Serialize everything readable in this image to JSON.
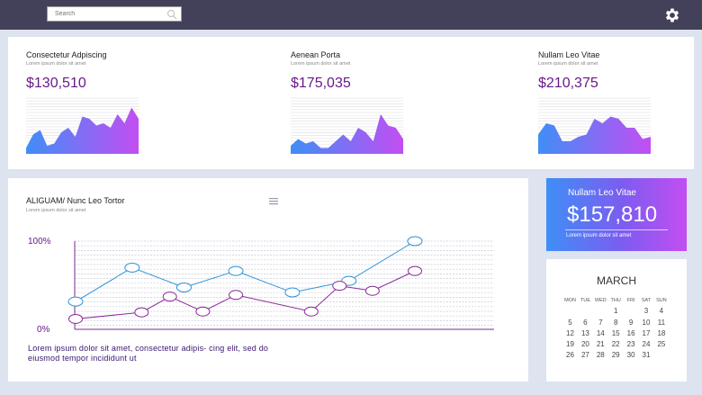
{
  "search": {
    "placeholder": "Search"
  },
  "stats": [
    {
      "title": "Consectetur Adpiscing",
      "subtitle": "Lorem ipsum dolor sit amet",
      "value": "$130,510",
      "series": [
        0.05,
        0.35,
        0.45,
        0.1,
        0.15,
        0.4,
        0.5,
        0.3,
        0.75,
        0.7,
        0.55,
        0.6,
        0.5,
        0.8,
        0.6,
        0.95,
        0.7
      ]
    },
    {
      "title": "Aenean Porta",
      "subtitle": "Lorem ipsum dolor sit amet",
      "value": "$175,035",
      "series": [
        0.1,
        0.25,
        0.15,
        0.2,
        0.05,
        0.05,
        0.2,
        0.35,
        0.2,
        0.5,
        0.4,
        0.2,
        0.8,
        0.55,
        0.5,
        0.25
      ]
    },
    {
      "title": "Nullam Leo Vitae",
      "subtitle": "Lorem ipsum dolor sit amet",
      "value": "$210,375",
      "series": [
        0.35,
        0.6,
        0.55,
        0.2,
        0.2,
        0.3,
        0.35,
        0.7,
        0.6,
        0.75,
        0.7,
        0.5,
        0.5,
        0.25,
        0.3
      ]
    }
  ],
  "line_chart": {
    "title": "ALIGUAM/ Nunc Leo Tortor",
    "subtitle": "Lorem ipsum dolor sit amet",
    "caption": "Lorem ipsum dolor sit amet, consectetur adipis- cing elit, sed do eiusmod tempor incididunt ut",
    "chart_data": {
      "type": "line",
      "y_tick_labels": [
        "100%",
        "0%"
      ],
      "ylim": [
        0,
        100
      ],
      "grid": true,
      "series": [
        {
          "color": "#2f93d6",
          "x": [
            0,
            1.2,
            2.3,
            3.4,
            4.6,
            5.8,
            7.2
          ],
          "values": [
            27,
            68,
            44,
            64,
            38,
            52,
            100
          ]
        },
        {
          "color": "#8a2a98",
          "x": [
            0,
            1.4,
            2.0,
            2.7,
            3.4,
            5.0,
            5.6,
            6.3,
            7.2
          ],
          "values": [
            6,
            14,
            33,
            15,
            35,
            15,
            46,
            40,
            64
          ]
        }
      ]
    }
  },
  "highlight": {
    "title": "Nullam Leo Vitae",
    "value": "$157,810",
    "subtitle": "Lorem ipsum dolor sit amet"
  },
  "calendar": {
    "month": "MARCH",
    "weekdays": [
      "MON",
      "TUE",
      "WED",
      "THU",
      "FRI",
      "SAT",
      "SUN"
    ],
    "weeks": [
      [
        "",
        "",
        "",
        "1",
        "2",
        "3",
        "4"
      ],
      [
        "5",
        "6",
        "7",
        "8",
        "9",
        "10",
        "11"
      ],
      [
        "12",
        "13",
        "14",
        "15",
        "16",
        "17",
        "18"
      ],
      [
        "19",
        "20",
        "21",
        "22",
        "23",
        "24",
        "25"
      ],
      [
        "26",
        "27",
        "28",
        "29",
        "30",
        "31",
        ""
      ]
    ],
    "selected": "2"
  },
  "colors": {
    "topbar": "#434159",
    "accent_purple": "#6a1a8a",
    "gradient_start": "#3f8ef7",
    "gradient_end": "#c34ef2"
  }
}
